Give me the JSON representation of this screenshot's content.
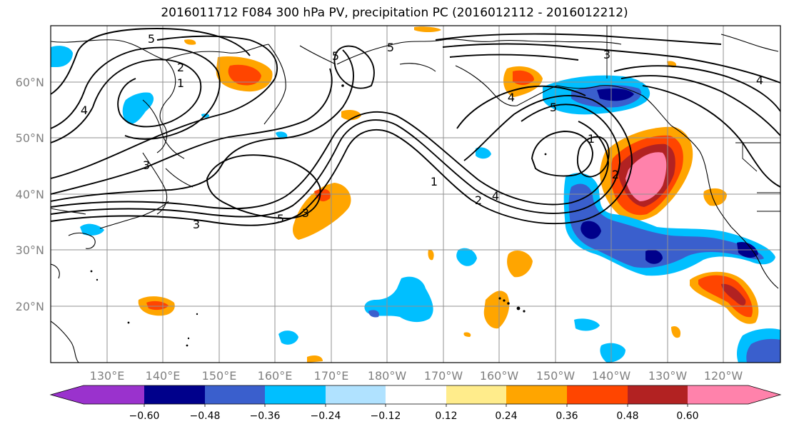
{
  "title": "2016011712 F084 300 hPa PV, precipitation PC (2016012112 - 2016012212)",
  "axes": {
    "lon_labels": [
      "130°E",
      "140°E",
      "150°E",
      "160°E",
      "170°E",
      "180°W",
      "170°W",
      "160°W",
      "150°W",
      "140°W",
      "130°W",
      "120°W"
    ],
    "lat_labels": [
      "60°N",
      "50°N",
      "40°N",
      "30°N",
      "20°N"
    ]
  },
  "contour_labels": [
    "5",
    "2",
    "1",
    "4",
    "3",
    "5",
    "3",
    "1",
    "2",
    "4",
    "5",
    "1",
    "3",
    "4",
    "5",
    "3",
    "2",
    "4",
    "5"
  ],
  "colorbar": {
    "ticks": [
      "−0.60",
      "−0.48",
      "−0.36",
      "−0.24",
      "−0.12",
      "0.12",
      "0.24",
      "0.36",
      "0.48",
      "0.60"
    ],
    "colors": [
      "#9a32cd",
      "#00008b",
      "#3a5fcd",
      "#00bfff",
      "#b0e2ff",
      "#ffffff",
      "#ffec8b",
      "#ffa500",
      "#ff4500",
      "#b22222",
      "#ff82ab"
    ]
  }
}
